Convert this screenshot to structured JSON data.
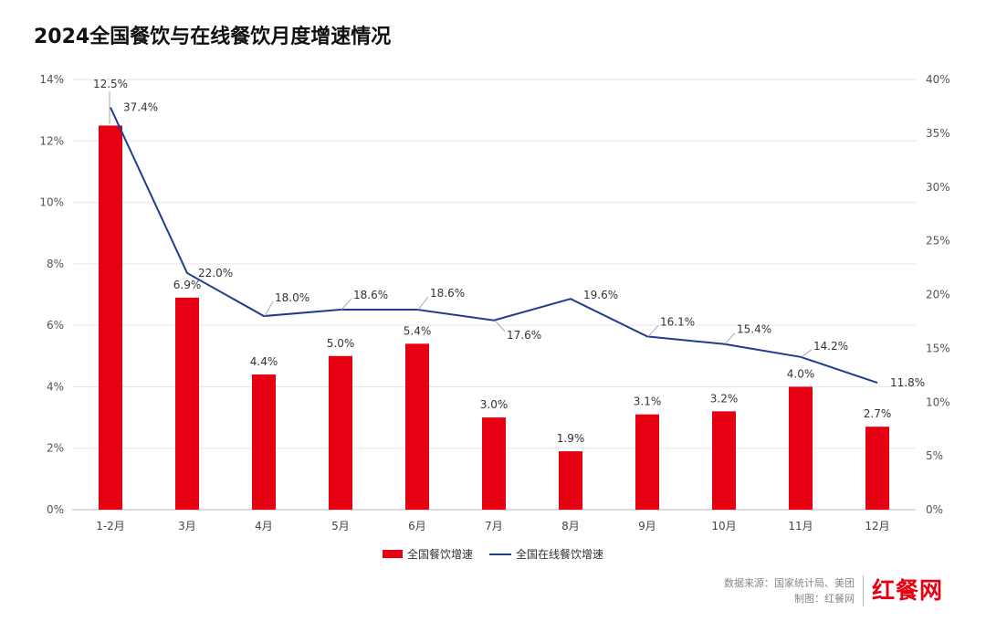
{
  "chart_data": {
    "type": "bar+line",
    "title": "2024全国餐饮与在线餐饮月度增速情况",
    "categories": [
      "1-2月",
      "3月",
      "4月",
      "5月",
      "6月",
      "7月",
      "8月",
      "9月",
      "10月",
      "11月",
      "12月"
    ],
    "series": [
      {
        "name": "全国餐饮增速",
        "type": "bar",
        "axis": "left",
        "color": "#e60012",
        "values": [
          12.5,
          6.9,
          4.4,
          5.0,
          5.4,
          3.0,
          1.9,
          3.1,
          3.2,
          4.0,
          2.7
        ]
      },
      {
        "name": "全国在线餐饮增速",
        "type": "line",
        "axis": "right",
        "color": "#1f3c8f",
        "values": [
          37.4,
          22.0,
          18.0,
          18.6,
          18.6,
          17.6,
          19.6,
          16.1,
          15.4,
          14.2,
          11.8
        ]
      }
    ],
    "y_left": {
      "range": [
        0,
        14
      ],
      "ticks": [
        "0%",
        "2%",
        "4%",
        "6%",
        "8%",
        "10%",
        "12%",
        "14%"
      ]
    },
    "y_right": {
      "range": [
        0,
        40
      ],
      "ticks": [
        "0%",
        "5%",
        "10%",
        "15%",
        "20%",
        "25%",
        "30%",
        "35%",
        "40%"
      ]
    },
    "grid": true,
    "legend": "bottom"
  },
  "footer": {
    "source": "数据来源：国家统计局、美团",
    "made_by": "制图：红餐网",
    "logo": "红餐网"
  }
}
